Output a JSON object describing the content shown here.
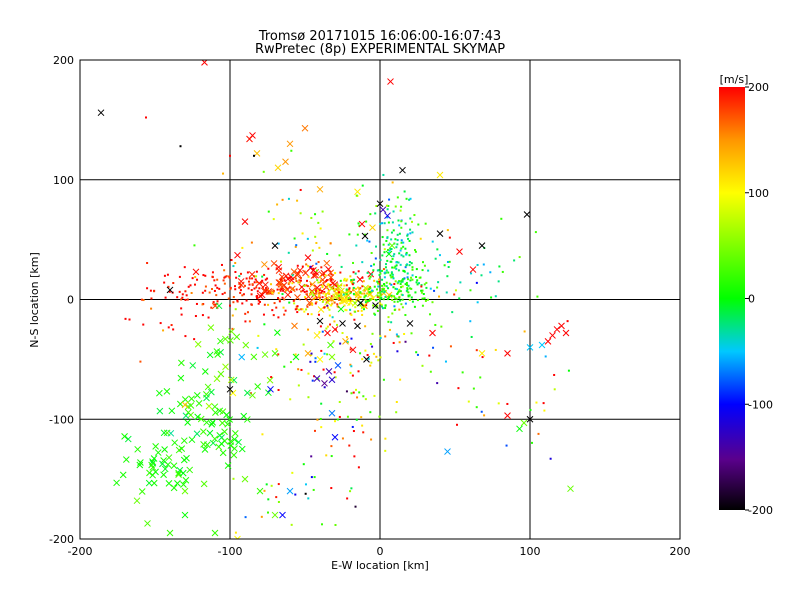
{
  "chart_data": {
    "type": "scatter",
    "title": "Tromsø 20171015 16:06:00-16:07:43",
    "subtitle": "RwPretec (8p) EXPERIMENTAL SKYMAP",
    "xlabel": "E-W location [km]",
    "ylabel": "N-S location [km]",
    "xlim": [
      -200,
      200
    ],
    "ylim": [
      -200,
      200
    ],
    "xticks": [
      "-200",
      "-100",
      "0",
      "100",
      "200"
    ],
    "yticks": [
      "-200",
      "-100",
      "0",
      "100",
      "200"
    ],
    "grid": true,
    "colorbar": {
      "label": "[m/s]",
      "range": [
        -200,
        200
      ],
      "ticks": [
        "200",
        "100",
        "0",
        "-100",
        "-200"
      ],
      "colormap": "black-purple-blue-cyan-green-yellow-red"
    },
    "points": [
      {
        "x": -186,
        "y": 156,
        "v": -200,
        "m": "x"
      },
      {
        "x": -156,
        "y": 152,
        "v": 200,
        "m": "."
      },
      {
        "x": -133,
        "y": 128,
        "v": -200,
        "m": "."
      },
      {
        "x": -117,
        "y": 198,
        "v": 200,
        "m": "x"
      },
      {
        "x": -100,
        "y": 120,
        "v": 200,
        "m": "."
      },
      {
        "x": -85,
        "y": 137,
        "v": 200,
        "m": "x"
      },
      {
        "x": -87,
        "y": 134,
        "v": 195,
        "m": "x"
      },
      {
        "x": -50,
        "y": 143,
        "v": 160,
        "m": "x"
      },
      {
        "x": -60,
        "y": 130,
        "v": 150,
        "m": "x"
      },
      {
        "x": -82,
        "y": 122,
        "v": 130,
        "m": "x"
      },
      {
        "x": -63,
        "y": 115,
        "v": 150,
        "m": "x"
      },
      {
        "x": -68,
        "y": 110,
        "v": 120,
        "m": "x"
      },
      {
        "x": -84,
        "y": 120,
        "v": -200,
        "m": "."
      },
      {
        "x": 7,
        "y": 182,
        "v": 200,
        "m": "x"
      },
      {
        "x": 15,
        "y": 108,
        "v": -200,
        "m": "x"
      },
      {
        "x": 40,
        "y": 104,
        "v": 110,
        "m": "x"
      },
      {
        "x": -40,
        "y": 92,
        "v": 140,
        "m": "x"
      },
      {
        "x": -15,
        "y": 90,
        "v": 110,
        "m": "x"
      },
      {
        "x": 0,
        "y": 80,
        "v": -200,
        "m": "x"
      },
      {
        "x": 2,
        "y": 75,
        "v": -150,
        "m": "x"
      },
      {
        "x": 5,
        "y": 70,
        "v": -120,
        "m": "x"
      },
      {
        "x": 98,
        "y": 71,
        "v": -200,
        "m": "x"
      },
      {
        "x": -90,
        "y": 65,
        "v": 200,
        "m": "x"
      },
      {
        "x": -12,
        "y": 63,
        "v": 200,
        "m": "x"
      },
      {
        "x": -5,
        "y": 60,
        "v": 120,
        "m": "x"
      },
      {
        "x": -10,
        "y": 53,
        "v": -200,
        "m": "x"
      },
      {
        "x": 40,
        "y": 55,
        "v": -200,
        "m": "x"
      },
      {
        "x": -70,
        "y": 45,
        "v": -200,
        "m": "x"
      },
      {
        "x": 68,
        "y": 45,
        "v": -200,
        "m": "x"
      },
      {
        "x": 53,
        "y": 40,
        "v": 200,
        "m": "x"
      },
      {
        "x": -95,
        "y": 37,
        "v": 200,
        "m": "x"
      },
      {
        "x": -48,
        "y": 35,
        "v": 200,
        "m": "x"
      },
      {
        "x": 8,
        "y": 45,
        "v": 40,
        "m": "x"
      },
      {
        "x": 6,
        "y": 38,
        "v": 0,
        "m": "x"
      },
      {
        "x": 62,
        "y": 25,
        "v": 200,
        "m": "x"
      },
      {
        "x": -140,
        "y": 8,
        "v": -200,
        "m": "x"
      },
      {
        "x": -13,
        "y": -3,
        "v": -200,
        "m": "x"
      },
      {
        "x": -3,
        "y": -5,
        "v": -200,
        "m": "x"
      },
      {
        "x": -40,
        "y": -18,
        "v": -200,
        "m": "x"
      },
      {
        "x": -25,
        "y": -20,
        "v": -200,
        "m": "x"
      },
      {
        "x": -15,
        "y": -22,
        "v": -200,
        "m": "x"
      },
      {
        "x": -35,
        "y": -28,
        "v": 200,
        "m": "x"
      },
      {
        "x": -30,
        "y": -25,
        "v": 200,
        "m": "x"
      },
      {
        "x": -57,
        "y": -22,
        "v": 160,
        "m": "x"
      },
      {
        "x": -42,
        "y": -30,
        "v": 110,
        "m": "x"
      },
      {
        "x": -33,
        "y": -38,
        "v": 30,
        "m": "x"
      },
      {
        "x": -23,
        "y": -35,
        "v": 140,
        "m": "x"
      },
      {
        "x": -18,
        "y": -42,
        "v": 200,
        "m": "x"
      },
      {
        "x": -32,
        "y": -48,
        "v": 50,
        "m": "x"
      },
      {
        "x": -40,
        "y": -50,
        "v": 100,
        "m": "x"
      },
      {
        "x": -48,
        "y": -45,
        "v": 140,
        "m": "x"
      },
      {
        "x": -28,
        "y": -55,
        "v": -80,
        "m": "x"
      },
      {
        "x": -34,
        "y": -60,
        "v": -150,
        "m": "x"
      },
      {
        "x": -42,
        "y": -66,
        "v": -150,
        "m": "x"
      },
      {
        "x": -37,
        "y": -70,
        "v": -170,
        "m": "x"
      },
      {
        "x": -32,
        "y": -67,
        "v": -130,
        "m": "x"
      },
      {
        "x": -9,
        "y": -50,
        "v": -200,
        "m": "x"
      },
      {
        "x": -56,
        "y": -48,
        "v": 0,
        "m": "x"
      },
      {
        "x": -70,
        "y": -45,
        "v": 30,
        "m": "x"
      },
      {
        "x": -26,
        "y": -8,
        "v": 0,
        "m": "x"
      },
      {
        "x": 20,
        "y": -20,
        "v": -200,
        "m": "x"
      },
      {
        "x": 35,
        "y": -28,
        "v": 200,
        "m": "x"
      },
      {
        "x": 68,
        "y": -45,
        "v": 110,
        "m": "x"
      },
      {
        "x": 85,
        "y": -45,
        "v": 200,
        "m": "x"
      },
      {
        "x": 100,
        "y": -40,
        "v": -50,
        "m": "x"
      },
      {
        "x": 108,
        "y": -38,
        "v": -50,
        "m": "x"
      },
      {
        "x": 112,
        "y": -35,
        "v": 200,
        "m": "x"
      },
      {
        "x": 115,
        "y": -30,
        "v": 200,
        "m": "x"
      },
      {
        "x": 118,
        "y": -25,
        "v": 200,
        "m": "x"
      },
      {
        "x": 121,
        "y": -22,
        "v": 200,
        "m": "x"
      },
      {
        "x": 124,
        "y": -28,
        "v": 200,
        "m": "x"
      },
      {
        "x": 100,
        "y": -100,
        "v": -200,
        "m": "x"
      },
      {
        "x": 96,
        "y": -103,
        "v": 40,
        "m": "x"
      },
      {
        "x": 93,
        "y": -108,
        "v": 0,
        "m": "x"
      },
      {
        "x": 85,
        "y": -97,
        "v": 200,
        "m": "x"
      },
      {
        "x": 45,
        "y": -127,
        "v": -60,
        "m": "x"
      },
      {
        "x": 127,
        "y": -158,
        "v": 40,
        "m": "x"
      },
      {
        "x": -130,
        "y": -88,
        "v": 130,
        "m": "x"
      },
      {
        "x": -100,
        "y": -75,
        "v": -200,
        "m": "x"
      },
      {
        "x": -73,
        "y": -75,
        "v": -100,
        "m": "x"
      },
      {
        "x": -85,
        "y": -80,
        "v": 40,
        "m": "x"
      },
      {
        "x": -32,
        "y": -95,
        "v": -70,
        "m": "x"
      },
      {
        "x": -30,
        "y": -115,
        "v": -100,
        "m": "x"
      },
      {
        "x": -60,
        "y": -160,
        "v": -60,
        "m": "x"
      },
      {
        "x": -65,
        "y": -180,
        "v": -100,
        "m": "x"
      },
      {
        "x": -95,
        "y": -200,
        "v": 100,
        "m": "x"
      },
      {
        "x": -162,
        "y": -168,
        "v": 40,
        "m": "x"
      },
      {
        "x": -155,
        "y": -187,
        "v": 30,
        "m": "x"
      },
      {
        "x": -140,
        "y": -195,
        "v": 20,
        "m": "x"
      },
      {
        "x": -130,
        "y": -180,
        "v": 0,
        "m": "x"
      },
      {
        "x": -130,
        "y": -160,
        "v": 40,
        "m": "x"
      },
      {
        "x": -90,
        "y": -150,
        "v": 40,
        "m": "x"
      },
      {
        "x": -80,
        "y": -160,
        "v": 20,
        "m": "x"
      },
      {
        "x": -70,
        "y": -180,
        "v": 40,
        "m": "x"
      },
      {
        "x": -110,
        "y": -195,
        "v": 20,
        "m": "x"
      }
    ],
    "clusters": [
      {
        "cx": -75,
        "cy": 8,
        "sx": 38,
        "sy": 10,
        "n": 260,
        "v": 195,
        "dv": 20,
        "m": "."
      },
      {
        "cx": -60,
        "cy": 15,
        "sx": 22,
        "sy": 8,
        "n": 60,
        "v": 190,
        "dv": 15,
        "m": "x"
      },
      {
        "cx": -30,
        "cy": 5,
        "sx": 18,
        "sy": 8,
        "n": 160,
        "v": 120,
        "dv": 25,
        "m": "."
      },
      {
        "cx": -22,
        "cy": 3,
        "sx": 12,
        "sy": 6,
        "n": 30,
        "v": 100,
        "dv": 25,
        "m": "x"
      },
      {
        "cx": 5,
        "cy": 5,
        "sx": 14,
        "sy": 8,
        "n": 140,
        "v": 15,
        "dv": 25,
        "m": "."
      },
      {
        "cx": 12,
        "cy": 25,
        "sx": 10,
        "sy": 14,
        "n": 110,
        "v": -10,
        "dv": 25,
        "m": "."
      },
      {
        "cx": 8,
        "cy": 60,
        "sx": 10,
        "sy": 16,
        "n": 60,
        "v": -20,
        "dv": 35,
        "m": "."
      },
      {
        "cx": 55,
        "cy": 15,
        "sx": 30,
        "sy": 18,
        "n": 50,
        "v": -15,
        "dv": 35,
        "m": "."
      },
      {
        "cx": -45,
        "cy": 50,
        "sx": 35,
        "sy": 25,
        "n": 70,
        "v": 60,
        "dv": 90,
        "m": "."
      },
      {
        "cx": -30,
        "cy": -40,
        "sx": 22,
        "sy": 25,
        "n": 100,
        "v": 60,
        "dv": 130,
        "m": "."
      },
      {
        "cx": 25,
        "cy": -40,
        "sx": 25,
        "sy": 25,
        "n": 40,
        "v": 20,
        "dv": 150,
        "m": "."
      },
      {
        "cx": -115,
        "cy": -105,
        "sx": 18,
        "sy": 20,
        "n": 70,
        "v": 10,
        "dv": 12,
        "m": "x"
      },
      {
        "cx": -145,
        "cy": -140,
        "sx": 12,
        "sy": 12,
        "n": 40,
        "v": 10,
        "dv": 12,
        "m": "x"
      },
      {
        "cx": -100,
        "cy": -50,
        "sx": 15,
        "sy": 25,
        "n": 30,
        "v": 30,
        "dv": 25,
        "m": "x"
      },
      {
        "cx": -55,
        "cy": -150,
        "sx": 25,
        "sy": 30,
        "n": 40,
        "v": 60,
        "dv": 120,
        "m": "."
      },
      {
        "cx": -20,
        "cy": -110,
        "sx": 15,
        "sy": 20,
        "n": 25,
        "v": 120,
        "dv": 80,
        "m": "."
      },
      {
        "cx": 100,
        "cy": -80,
        "sx": 20,
        "sy": 40,
        "n": 20,
        "v": 100,
        "dv": 120,
        "m": "."
      },
      {
        "cx": -140,
        "cy": -10,
        "sx": 25,
        "sy": 15,
        "n": 25,
        "v": 200,
        "dv": 20,
        "m": "."
      }
    ]
  }
}
